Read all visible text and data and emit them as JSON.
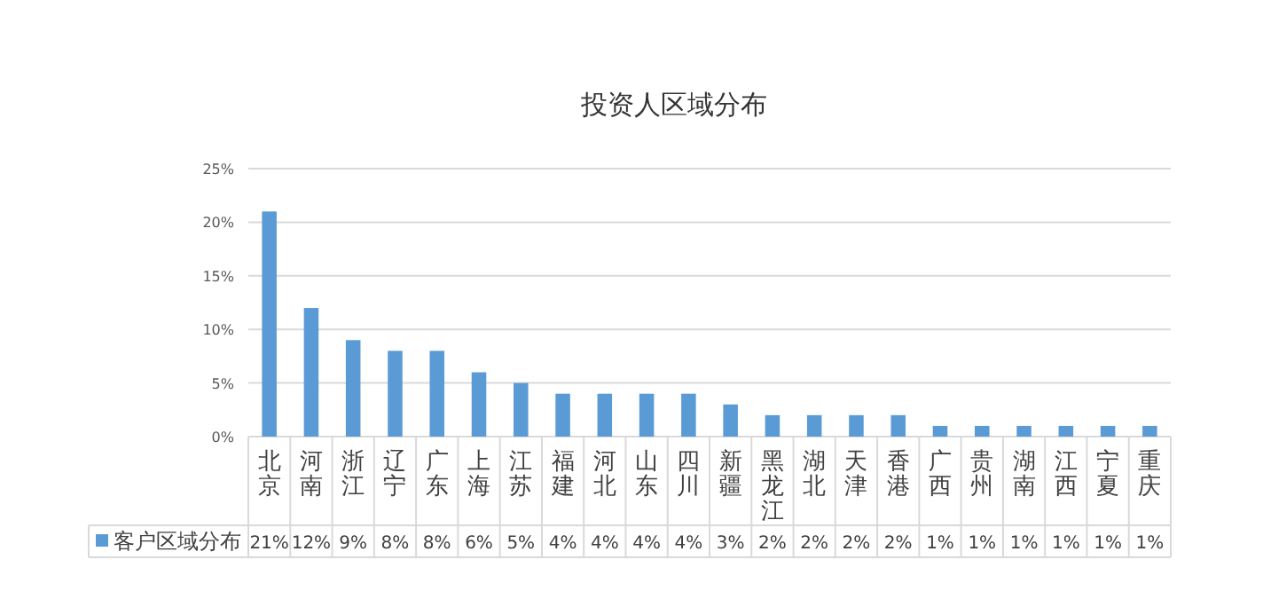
{
  "chart_data": {
    "type": "bar",
    "title": "投资人区域分布",
    "categories": [
      "北京",
      "河南",
      "浙江",
      "辽宁",
      "广东",
      "上海",
      "江苏",
      "福建",
      "河北",
      "山东",
      "四川",
      "新疆",
      "黑龙江",
      "湖北",
      "天津",
      "香港",
      "广西",
      "贵州",
      "湖南",
      "江西",
      "宁夏",
      "重庆"
    ],
    "series": [
      {
        "name": "客户区域分布",
        "color": "#5b9bd5",
        "values": [
          21,
          12,
          9,
          8,
          8,
          6,
          5,
          4,
          4,
          4,
          4,
          3,
          2,
          2,
          2,
          2,
          1,
          1,
          1,
          1,
          1,
          1
        ],
        "value_labels": [
          "21%",
          "12%",
          "9%",
          "8%",
          "8%",
          "6%",
          "5%",
          "4%",
          "4%",
          "4%",
          "4%",
          "3%",
          "2%",
          "2%",
          "2%",
          "2%",
          "1%",
          "1%",
          "1%",
          "1%",
          "1%",
          "1%"
        ]
      }
    ],
    "ylim": [
      0,
      25
    ],
    "yticks": [
      {
        "value": 0,
        "label": "0%"
      },
      {
        "value": 5,
        "label": "5%"
      },
      {
        "value": 10,
        "label": "10%"
      },
      {
        "value": 15,
        "label": "15%"
      },
      {
        "value": 20,
        "label": "20%"
      },
      {
        "value": 25,
        "label": "25%"
      }
    ],
    "grid": "y",
    "legend": "bottom"
  }
}
